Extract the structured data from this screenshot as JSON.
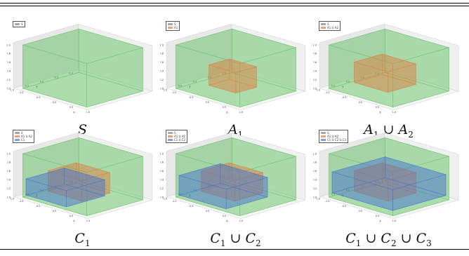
{
  "figure": {
    "panels": [
      {
        "id": "S",
        "legend": [
          "S"
        ],
        "caption_parts": [
          {
            "t": "S",
            "sub": ""
          }
        ],
        "boxes": []
      },
      {
        "id": "A1",
        "legend": [
          "S",
          "A1"
        ],
        "caption_parts": [
          {
            "t": "A",
            "sub": "1"
          }
        ],
        "boxes": [
          "orange"
        ]
      },
      {
        "id": "A1uA2",
        "legend": [
          "S",
          "A1 U A2"
        ],
        "caption_parts": [
          {
            "t": "A",
            "sub": "1"
          },
          {
            "t": "A",
            "sub": "2"
          }
        ],
        "boxes": [
          "orange-wide"
        ]
      },
      {
        "id": "C1",
        "legend": [
          "S",
          "A1 U A2",
          "C1"
        ],
        "caption_parts": [
          {
            "t": "C",
            "sub": "1"
          }
        ],
        "boxes": [
          "orange-wide",
          "blue"
        ]
      },
      {
        "id": "C1uC2",
        "legend": [
          "S",
          "A1 U A2",
          "C1 U C2"
        ],
        "caption_parts": [
          {
            "t": "C",
            "sub": "1"
          },
          {
            "t": "C",
            "sub": "2"
          }
        ],
        "boxes": [
          "orange-wide",
          "blue-wide"
        ]
      },
      {
        "id": "C1uC2uC3",
        "legend": [
          "S",
          "A1 U A2",
          "C1 U C2 U C3"
        ],
        "caption_parts": [
          {
            "t": "C",
            "sub": "1"
          },
          {
            "t": "C",
            "sub": "2"
          },
          {
            "t": "C",
            "sub": "3"
          }
        ],
        "boxes": [
          "orange-wide",
          "blue-full"
        ]
      }
    ],
    "union_symbol": "∪",
    "axis": {
      "z_ticks": [
        "0.0",
        "0.2",
        "0.4",
        "0.6",
        "0.8",
        "1.0"
      ],
      "y_ticks": [
        "1.0",
        "0.5",
        "0.0",
        "-0.5",
        "-1.0"
      ],
      "x_ticks": [
        "-1.0",
        "-0.5",
        "0.0",
        "0.5",
        "1.0"
      ],
      "x_label": "x",
      "y_label": "y",
      "z_label": "z"
    },
    "colors": {
      "S": "#5cbf5c",
      "A": "#e07b3c",
      "C": "#3f6fd0",
      "legend_S": "#a8a8a8",
      "legend_A": "#f0a070",
      "legend_C": "#7fa0e0"
    }
  }
}
